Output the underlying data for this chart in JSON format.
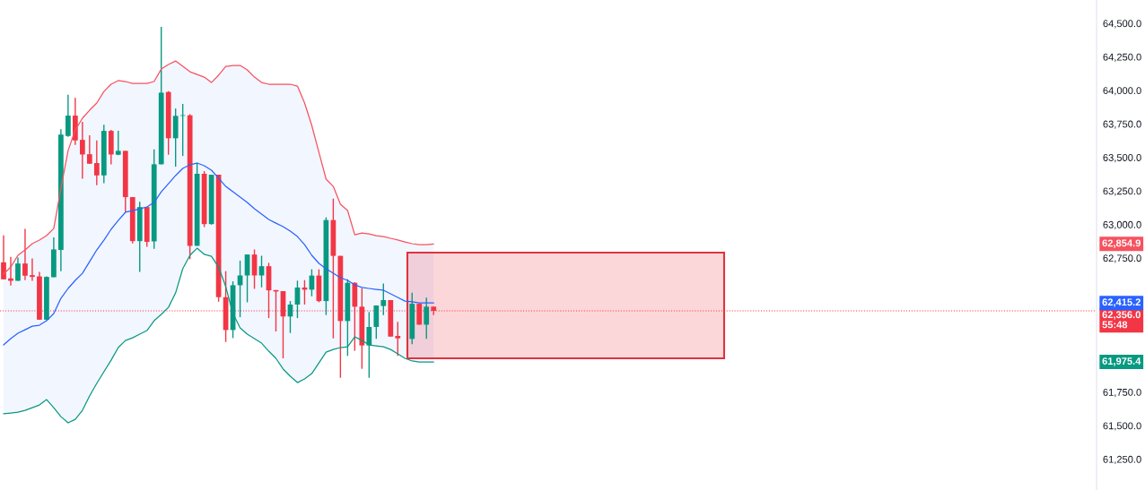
{
  "chart_data": {
    "type": "candlestick",
    "categories": [
      null,
      null,
      null,
      null,
      null,
      null,
      null,
      null,
      null,
      null,
      null,
      null,
      null,
      null,
      null,
      null,
      null,
      null,
      null,
      null,
      null,
      null,
      null,
      null,
      null,
      null,
      null,
      null,
      null,
      null,
      null,
      null,
      null,
      null,
      null,
      null,
      null,
      null,
      null,
      null,
      null,
      null,
      null,
      null,
      null,
      null,
      null,
      null,
      null,
      null,
      null,
      null,
      null,
      null,
      null,
      null,
      null,
      null,
      null,
      null,
      null,
      null,
      null,
      null,
      null,
      null,
      null,
      null,
      null,
      null,
      null,
      null,
      null,
      null,
      null,
      null,
      null,
      null,
      null,
      null,
      null,
      null,
      null,
      null,
      null,
      null,
      null,
      null,
      null,
      null,
      null,
      null,
      null,
      null,
      null,
      null,
      null,
      null,
      null,
      null,
      null,
      null,
      null,
      null,
      null,
      null,
      null,
      null,
      null,
      null,
      null,
      null,
      null,
      null,
      null,
      null,
      null,
      null,
      null,
      null,
      null,
      null,
      null,
      null,
      null,
      null,
      null,
      null,
      null,
      null,
      null,
      null,
      null,
      null,
      null,
      null,
      null,
      null,
      null,
      null,
      null,
      null,
      null,
      null,
      null,
      null,
      null,
      null,
      null,
      null,
      null,
      null,
      null
    ],
    "ohlc": [
      [
        62718,
        62919,
        62591,
        62591
      ],
      [
        62598,
        62758,
        62544,
        62580
      ],
      [
        62580,
        62754,
        62580,
        62709
      ],
      [
        62709,
        62968,
        62584,
        62618
      ],
      [
        62622,
        62747,
        62580,
        62609
      ],
      [
        62613,
        62647,
        62290,
        62290
      ],
      [
        62290,
        62613,
        62286,
        62609
      ],
      [
        62607,
        62903,
        62607,
        62814
      ],
      [
        62810,
        63711,
        62651,
        63671
      ],
      [
        63660,
        63967,
        63653,
        63812
      ],
      [
        63812,
        63945,
        63594,
        63627
      ],
      [
        63631,
        63765,
        63342,
        63522
      ],
      [
        63524,
        63665,
        63453,
        63453
      ],
      [
        63458,
        63627,
        63293,
        63366
      ],
      [
        63366,
        63743,
        63308,
        63698
      ],
      [
        63698,
        63705,
        63449,
        63522
      ],
      [
        63520,
        63698,
        63516,
        63549
      ],
      [
        63549,
        63549,
        63093,
        63204
      ],
      [
        63204,
        63204,
        62859,
        62876
      ],
      [
        62876,
        63170,
        62647,
        63130
      ],
      [
        63130,
        63130,
        62834,
        62870
      ],
      [
        62874,
        63560,
        62819,
        63449
      ],
      [
        63449,
        64473,
        63449,
        63983
      ],
      [
        63988,
        63994,
        63520,
        63643
      ],
      [
        63643,
        63865,
        63431,
        63810
      ],
      [
        63810,
        63899,
        63511,
        63815
      ],
      [
        63814,
        63823,
        62741,
        62841
      ],
      [
        62841,
        63460,
        62841,
        63378
      ],
      [
        63378,
        63398,
        62981,
        63003
      ],
      [
        63003,
        63371,
        62999,
        63371
      ],
      [
        63371,
        63371,
        62424,
        62458
      ],
      [
        62458,
        62652,
        62124,
        62213
      ],
      [
        62213,
        62576,
        62153,
        62547
      ],
      [
        62547,
        62730,
        62309,
        62620
      ],
      [
        62620,
        62776,
        62420,
        62776
      ],
      [
        62776,
        62814,
        62520,
        62620
      ],
      [
        62620,
        62767,
        62531,
        62689
      ],
      [
        62689,
        62714,
        62302,
        62509
      ],
      [
        62511,
        62511,
        62202,
        62500
      ],
      [
        62503,
        62503,
        62002,
        62314
      ],
      [
        62314,
        62429,
        62191,
        62403
      ],
      [
        62403,
        62581,
        62302,
        62530
      ],
      [
        62530,
        62585,
        62403,
        62514
      ],
      [
        62514,
        62666,
        62465,
        62619
      ],
      [
        62619,
        62666,
        62420,
        62429
      ],
      [
        62429,
        63053,
        62325,
        63033
      ],
      [
        63033,
        63193,
        62151,
        62766
      ],
      [
        62766,
        62766,
        61857,
        62280
      ],
      [
        62280,
        62592,
        62020,
        62565
      ],
      [
        62565,
        62570,
        62058,
        62387
      ],
      [
        62387,
        62525,
        61924,
        62098
      ],
      [
        62098,
        62347,
        61857,
        62236
      ],
      [
        62236,
        62396,
        62147,
        62396
      ],
      [
        62392,
        62559,
        62325,
        62436
      ],
      [
        62436,
        62436,
        62164,
        62164
      ],
      [
        62169,
        62274,
        62020,
        62151
      ],
      null,
      [
        62147,
        62492,
        62107,
        62409
      ],
      [
        62409,
        62409,
        62253,
        62253
      ],
      [
        62253,
        62454,
        62147,
        62387
      ],
      [
        62387,
        62387,
        62325,
        62356
      ],
      null,
      null,
      null,
      null,
      null,
      null,
      null,
      null,
      null,
      null,
      null,
      null,
      null,
      null,
      null,
      null,
      null,
      null,
      null,
      null,
      null,
      null,
      null,
      null,
      null,
      null,
      null,
      null,
      null,
      null,
      null,
      null,
      null,
      null,
      null,
      null,
      null,
      null,
      null,
      null,
      null,
      null,
      null,
      null,
      null,
      null,
      null,
      null,
      null,
      null,
      null,
      null,
      null,
      null,
      null,
      null,
      null,
      null,
      null,
      null,
      null,
      null,
      null,
      null,
      null,
      null,
      null,
      null,
      null,
      null,
      null,
      null,
      null,
      null,
      null,
      null,
      null,
      null,
      null,
      null,
      null,
      null,
      null,
      null,
      null,
      null,
      null,
      null,
      null,
      null,
      null,
      null
    ],
    "colors": [
      "#f23645",
      "#f23645",
      "#089981",
      "#f23645",
      "#f23645",
      "#f23645",
      "#089981",
      "#089981",
      "#089981",
      "#089981",
      "#f23645",
      "#f23645",
      "#f23645",
      "#f23645",
      "#089981",
      "#f23645",
      "#089981",
      "#f23645",
      "#f23645",
      "#089981",
      "#f23645",
      "#089981",
      "#089981",
      "#f23645",
      "#089981",
      "#089981",
      "#f23645",
      "#089981",
      "#f23645",
      "#089981",
      "#f23645",
      "#f23645",
      "#089981",
      "#089981",
      "#089981",
      "#f23645",
      "#089981",
      "#f23645",
      "#f23645",
      "#f23645",
      "#089981",
      "#089981",
      "#f23645",
      "#089981",
      "#f23645",
      "#089981",
      "#f23645",
      "#f23645",
      "#089981",
      "#f23645",
      "#f23645",
      "#089981",
      "#089981",
      "#089981",
      "#f23645",
      "#f23645",
      null,
      "#089981",
      "#f23645",
      "#089981",
      "#f23645",
      null,
      null,
      null,
      null,
      null,
      null,
      null,
      null,
      null,
      null,
      null,
      null,
      null,
      null,
      null,
      null,
      null,
      null,
      null,
      null,
      null,
      null,
      null,
      null,
      null,
      null,
      null,
      null,
      null,
      null,
      null,
      null,
      null,
      null,
      null,
      null,
      null,
      null,
      null,
      null,
      null,
      null,
      null,
      null,
      null,
      null,
      null,
      null,
      null,
      null,
      null,
      null,
      null,
      null,
      null,
      null,
      null,
      null,
      null,
      null,
      null,
      null,
      null,
      null,
      null,
      null,
      null,
      null,
      null,
      null,
      null,
      null,
      null,
      null,
      null,
      null,
      null,
      null,
      null,
      null,
      null,
      null,
      null,
      null,
      null,
      null,
      null,
      null,
      null,
      null,
      null,
      null
    ],
    "series": [
      {
        "type": "line",
        "color": "#f7525f",
        "values": [
          62630,
          62683,
          62770,
          62810,
          62857,
          62884,
          62917,
          62970,
          63271,
          63551,
          63705,
          63792,
          63852,
          63906,
          63992,
          64046,
          64073,
          64066,
          64052,
          64052,
          64052,
          64066,
          64159,
          64193,
          64219,
          64179,
          64139,
          64119,
          64099,
          64059,
          64113,
          64179,
          64186,
          64186,
          64153,
          64099,
          64059,
          64046,
          64046,
          64046,
          64046,
          64032,
          63906,
          63739,
          63538,
          63338,
          63284,
          63151,
          63104,
          62923,
          62937,
          62930,
          62917,
          62910,
          62897,
          62884,
          62870,
          62857,
          62850,
          62850,
          62855,
          null,
          null,
          null,
          null,
          null,
          null,
          null,
          null,
          null,
          null,
          null,
          null,
          null,
          null,
          null,
          null,
          null,
          null,
          null,
          null,
          null,
          null,
          null,
          null,
          null,
          null,
          null,
          null,
          null,
          null,
          null,
          null,
          null,
          null,
          null,
          null,
          null,
          null,
          null,
          null,
          null,
          null,
          null,
          null,
          null,
          null,
          null,
          null,
          null,
          null,
          null,
          null,
          null,
          null,
          null,
          null,
          null,
          null,
          null,
          null,
          null,
          null,
          null,
          null,
          null,
          null,
          null,
          null,
          null,
          null,
          null,
          null,
          null,
          null,
          null,
          null,
          null,
          null,
          null,
          null,
          null,
          null,
          null,
          null,
          null,
          null,
          null,
          null,
          null,
          null,
          null,
          null
        ]
      },
      {
        "type": "line",
        "color": "#2962ff",
        "values": [
          62102,
          62149,
          62189,
          62215,
          62242,
          62249,
          62282,
          62336,
          62449,
          62523,
          62583,
          62636,
          62723,
          62810,
          62883,
          62964,
          63030,
          63091,
          63104,
          63117,
          63131,
          63164,
          63244,
          63304,
          63365,
          63418,
          63445,
          63458,
          63438,
          63405,
          63345,
          63284,
          63244,
          63204,
          63164,
          63117,
          63077,
          63037,
          63010,
          62984,
          62950,
          62910,
          62850,
          62770,
          62710,
          62670,
          62636,
          62603,
          62583,
          62550,
          62530,
          62523,
          62516,
          62510,
          62483,
          62456,
          62429,
          62423,
          62416,
          62416,
          62415,
          null,
          null,
          null,
          null,
          null,
          null,
          null,
          null,
          null,
          null,
          null,
          null,
          null,
          null,
          null,
          null,
          null,
          null,
          null,
          null,
          null,
          null,
          null,
          null,
          null,
          null,
          null,
          null,
          null,
          null,
          null,
          null,
          null,
          null,
          null,
          null,
          null,
          null,
          null,
          null,
          null,
          null,
          null,
          null,
          null,
          null,
          null,
          null,
          null,
          null,
          null,
          null,
          null,
          null,
          null,
          null,
          null,
          null,
          null,
          null,
          null,
          null,
          null,
          null,
          null,
          null,
          null,
          null,
          null,
          null,
          null,
          null,
          null,
          null,
          null,
          null,
          null,
          null,
          null,
          null,
          null,
          null,
          null,
          null,
          null,
          null,
          null,
          null,
          null,
          null,
          null,
          null
        ],
        "lower": [
          61588,
          61594,
          61601,
          61614,
          61634,
          61654,
          61694,
          61634,
          61567,
          61521,
          61547,
          61614,
          61721,
          61815,
          61902,
          61988,
          62082,
          62135,
          62155,
          62182,
          62209,
          62282,
          62329,
          62382,
          62489,
          62670,
          62770,
          62823,
          62777,
          62763,
          62683,
          62536,
          62336,
          62229,
          62182,
          62149,
          62115,
          62055,
          62002,
          61922,
          61868,
          61821,
          61848,
          61888,
          61968,
          62048,
          62068,
          62082,
          62088,
          62162,
          62135,
          62102,
          62095,
          62088,
          62068,
          62035,
          62002,
          61982,
          61975,
          61975,
          61975,
          null,
          null,
          null,
          null,
          null,
          null,
          null,
          null,
          null,
          null,
          null,
          null,
          null,
          null,
          null,
          null,
          null,
          null,
          null,
          null,
          null,
          null,
          null,
          null,
          null,
          null,
          null,
          null,
          null,
          null,
          null,
          null,
          null,
          null,
          null,
          null,
          null,
          null,
          null,
          null,
          null,
          null,
          null,
          null,
          null,
          null,
          null,
          null,
          null,
          null,
          null,
          null,
          null,
          null,
          null,
          null,
          null,
          null,
          null,
          null,
          null,
          null,
          null,
          null,
          null,
          null,
          null,
          null,
          null,
          null,
          null,
          null,
          null,
          null,
          null,
          null,
          null,
          null,
          null,
          null,
          null,
          null,
          null,
          null,
          null,
          null,
          null,
          null,
          null,
          null,
          null,
          null
        ],
        "upper": [
          62630,
          62683,
          62770,
          62810,
          62857,
          62884,
          62917,
          62970,
          63271,
          63551,
          63705,
          63792,
          63852,
          63906,
          63992,
          64046,
          64073,
          64066,
          64052,
          64052,
          64052,
          64066,
          64159,
          64193,
          64219,
          64179,
          64139,
          64119,
          64099,
          64059,
          64113,
          64179,
          64186,
          64186,
          64153,
          64099,
          64059,
          64046,
          64046,
          64046,
          64046,
          64032,
          63906,
          63739,
          63538,
          63338,
          63284,
          63151,
          63104,
          62923,
          62937,
          62930,
          62917,
          62910,
          62897,
          62884,
          62870,
          62857,
          62850,
          62850,
          62855,
          null,
          null,
          null,
          null,
          null,
          null,
          null,
          null,
          null,
          null,
          null,
          null,
          null,
          null,
          null,
          null,
          null,
          null,
          null,
          null,
          null,
          null,
          null,
          null,
          null,
          null,
          null,
          null,
          null,
          null,
          null,
          null,
          null,
          null,
          null,
          null,
          null,
          null,
          null,
          null,
          null,
          null,
          null,
          null,
          null,
          null,
          null,
          null,
          null,
          null,
          null,
          null,
          null,
          null,
          null,
          null,
          null,
          null,
          null,
          null,
          null,
          null,
          null,
          null,
          null,
          null,
          null,
          null,
          null,
          null,
          null,
          null,
          null,
          null,
          null,
          null,
          null,
          null,
          null,
          null,
          null,
          null,
          null,
          null,
          null,
          null,
          null,
          null,
          null,
          null,
          null,
          null
        ]
      },
      {
        "type": "line",
        "color": "#089981",
        "values": [
          61588,
          61594,
          61601,
          61614,
          61634,
          61654,
          61694,
          61634,
          61567,
          61521,
          61547,
          61614,
          61721,
          61815,
          61902,
          61988,
          62082,
          62135,
          62155,
          62182,
          62209,
          62282,
          62329,
          62382,
          62489,
          62670,
          62770,
          62823,
          62777,
          62763,
          62683,
          62536,
          62336,
          62229,
          62182,
          62149,
          62115,
          62055,
          62002,
          61922,
          61868,
          61821,
          61848,
          61888,
          61968,
          62048,
          62068,
          62082,
          62088,
          62162,
          62135,
          62102,
          62095,
          62088,
          62068,
          62035,
          62002,
          61982,
          61975,
          61975,
          61975,
          null,
          null,
          null,
          null,
          null,
          null,
          null,
          null,
          null,
          null,
          null,
          null,
          null,
          null,
          null,
          null,
          null,
          null,
          null,
          null,
          null,
          null,
          null,
          null,
          null,
          null,
          null,
          null,
          null,
          null,
          null,
          null,
          null,
          null,
          null,
          null,
          null,
          null,
          null,
          null,
          null,
          null,
          null,
          null,
          null,
          null,
          null,
          null,
          null,
          null,
          null,
          null,
          null,
          null,
          null,
          null,
          null,
          null,
          null,
          null,
          null,
          null,
          null,
          null,
          null,
          null,
          null,
          null,
          null,
          null,
          null,
          null,
          null,
          null,
          null,
          null,
          null,
          null,
          null,
          null,
          null,
          null,
          null,
          null,
          null,
          null,
          null,
          null,
          null,
          null,
          null,
          null
        ]
      }
    ],
    "ylim": [
      61020,
      64674
    ],
    "yticks": [
      {
        "value": 61250,
        "label": "61,250.0"
      },
      {
        "value": 61500,
        "label": "61,500.0"
      },
      {
        "value": 61750,
        "label": "61,750.0"
      },
      {
        "value": 62750,
        "label": "62,750.0"
      },
      {
        "value": 63000,
        "label": "63,000.0"
      },
      {
        "value": 63250,
        "label": "63,250.0"
      },
      {
        "value": 63500,
        "label": "63,500.0"
      },
      {
        "value": 63750,
        "label": "63,750.0"
      },
      {
        "value": 64000,
        "label": "64,000.0"
      },
      {
        "value": 64250,
        "label": "64,250.0"
      },
      {
        "value": 64500,
        "label": "64,500.0"
      }
    ],
    "tick_labels": "y",
    "grid": false,
    "legend": false,
    "ref_lines": [
      {
        "axis": "y",
        "value": 62356,
        "label": "62,356.0\n55:48",
        "color": "#f23645",
        "line_style": "dotted"
      }
    ],
    "annotations": [
      "62,854.9",
      "62,415.2",
      "61,975.4"
    ]
  }
}
